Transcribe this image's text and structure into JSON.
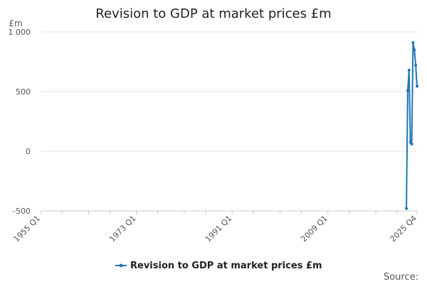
{
  "chart_data": {
    "type": "line",
    "title": "Revision to GDP at market prices £m",
    "ylabel": "£m",
    "xlabel": "",
    "ylim": [
      -500,
      1000
    ],
    "yticks": [
      -500,
      0,
      500,
      1000
    ],
    "ytick_labels": [
      "-500",
      "0",
      "500",
      "1 000"
    ],
    "xlim": [
      "1955 Q1",
      "2025 Q4"
    ],
    "xtick_labels": [
      "1955 Q1",
      "1973 Q1",
      "1991 Q1",
      "2009 Q1",
      "2025 Q4"
    ],
    "x_minor_ticks": [
      "1955 Q1",
      "1959 Q1",
      "1964 Q1",
      "1968 Q1",
      "1973 Q1",
      "1977 Q1",
      "1982 Q1",
      "1986 Q1",
      "1991 Q1",
      "1995 Q1",
      "2000 Q1",
      "2004 Q1",
      "2009 Q1",
      "2013 Q1",
      "2018 Q1",
      "2022 Q1",
      "2025 Q4"
    ],
    "grid": "horizontal",
    "legend": "bottom-center",
    "series": [
      {
        "name": "Revision to GDP at market prices £m",
        "color": "#1f77b4",
        "x": [
          "2023 Q4",
          "2024 Q1",
          "2024 Q2",
          "2024 Q3",
          "2024 Q4",
          "2025 Q1",
          "2025 Q2",
          "2025 Q3",
          "2025 Q4"
        ],
        "y": [
          -480,
          510,
          680,
          75,
          60,
          910,
          850,
          720,
          545
        ]
      }
    ]
  },
  "source_label": "Source:"
}
